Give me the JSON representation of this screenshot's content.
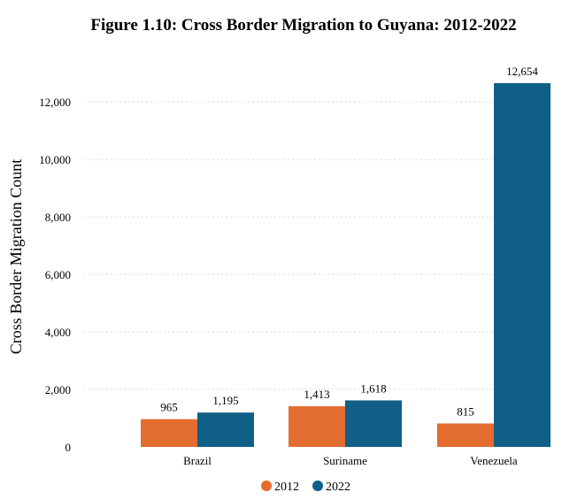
{
  "chart_data": {
    "type": "bar",
    "title": "Figure 1.10: Cross Border Migration to Guyana: 2012-2022",
    "xlabel": "",
    "ylabel": "Cross Border Migration Count",
    "categories": [
      "Brazil",
      "Suriname",
      "Venezuela"
    ],
    "series": [
      {
        "name": "2012",
        "color": "#E36C2F",
        "values": [
          965,
          1413,
          815
        ],
        "labels": [
          "965",
          "1,413",
          "815"
        ]
      },
      {
        "name": "2022",
        "color": "#0F5F87",
        "values": [
          1195,
          1618,
          12654
        ],
        "labels": [
          "1,195",
          "1,618",
          "12,654"
        ]
      }
    ],
    "ylim": [
      0,
      12654
    ],
    "yticks": [
      0,
      2000,
      4000,
      6000,
      8000,
      10000,
      12000
    ],
    "ytick_labels": [
      "0",
      "2,000",
      "4,000",
      "6,000",
      "8,000",
      "10,000",
      "12,000"
    ],
    "grid": true,
    "legend_position": "bottom-center"
  }
}
